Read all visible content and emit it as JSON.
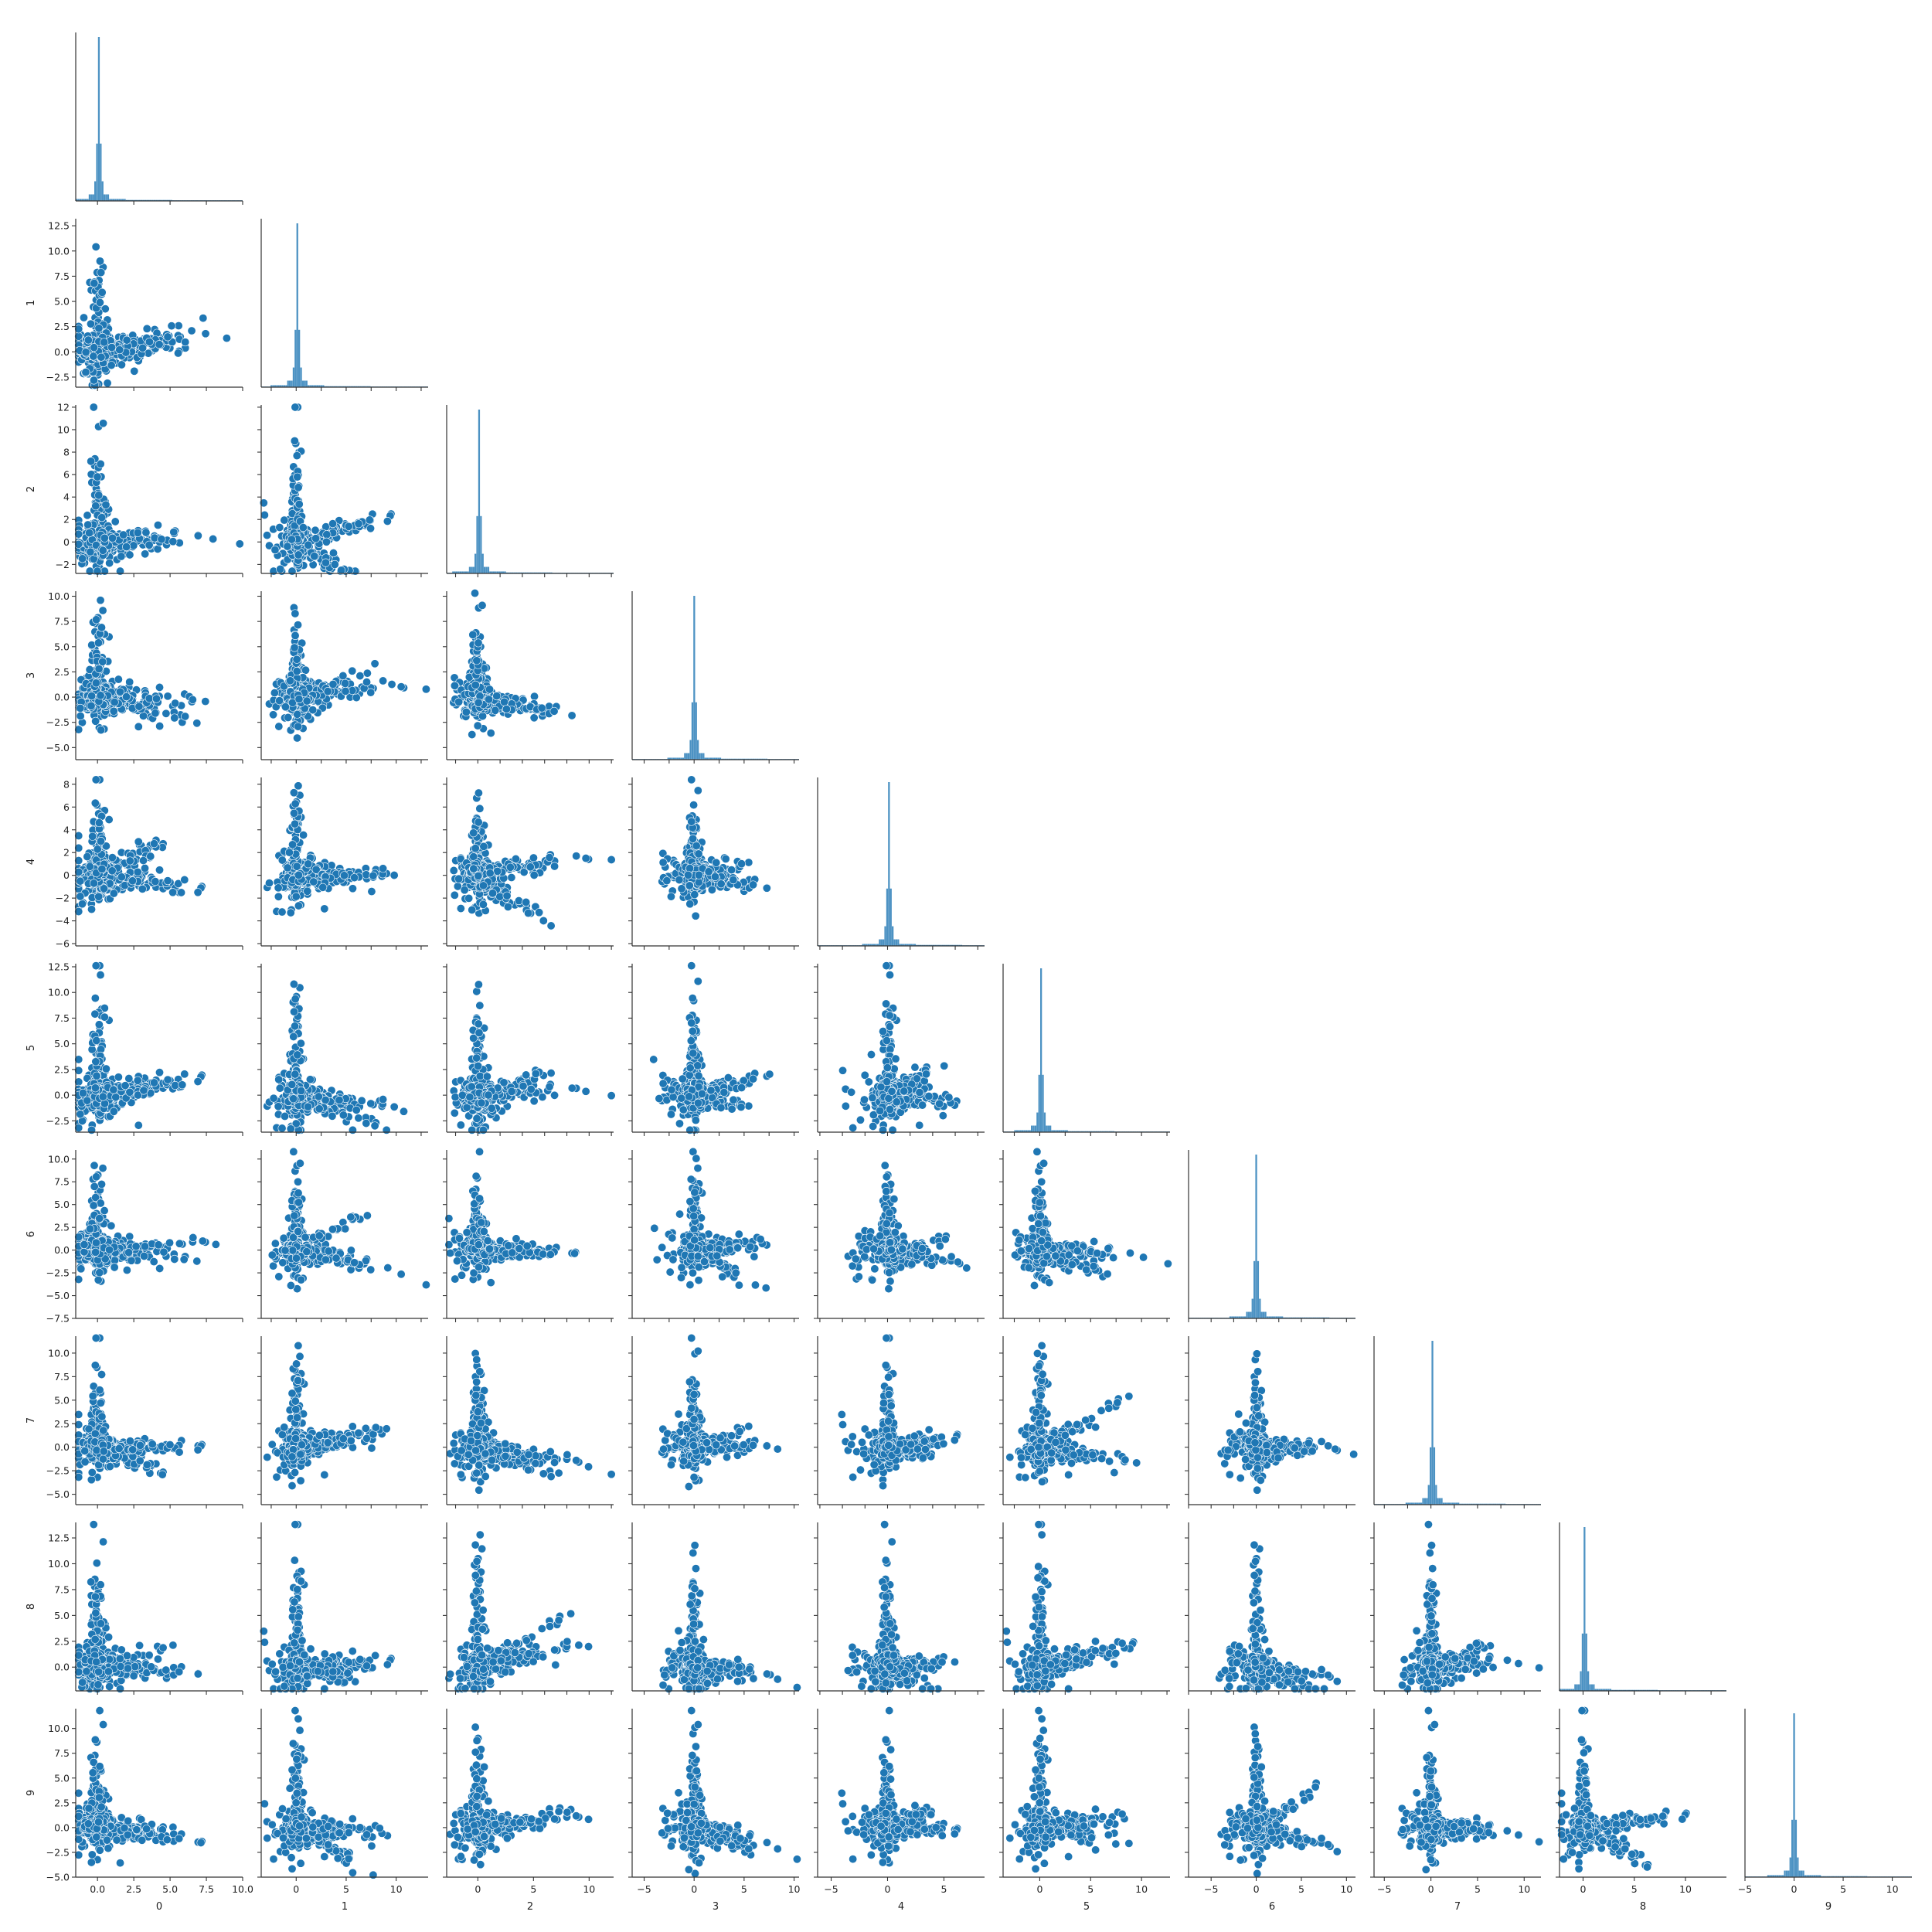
{
  "chart_data": {
    "type": "scatter",
    "kind": "pairplot-corner",
    "variables": [
      "0",
      "1",
      "2",
      "3",
      "4",
      "5",
      "6",
      "7",
      "8",
      "9"
    ],
    "diagonal": "histogram",
    "colors": {
      "marker": "#1f77b4",
      "hist": "#1f77b4",
      "axis": "#333333"
    },
    "grid": false,
    "ranges": [
      [
        -1.5,
        10.0
      ],
      [
        -3.5,
        13.2
      ],
      [
        -2.8,
        12.2
      ],
      [
        -6.2,
        10.5
      ],
      [
        -6.2,
        8.6
      ],
      [
        -3.6,
        12.8
      ],
      [
        -7.5,
        11.0
      ],
      [
        -6.1,
        11.8
      ],
      [
        -2.3,
        14.0
      ],
      [
        -5.0,
        12.0
      ]
    ],
    "ticks": [
      [
        0,
        2.5,
        5,
        7.5,
        10
      ],
      [
        -2.5,
        0,
        2.5,
        5,
        7.5,
        10,
        12.5
      ],
      [
        -2,
        0,
        2,
        4,
        6,
        8,
        10,
        12
      ],
      [
        -5,
        -2.5,
        0,
        2.5,
        5,
        7.5,
        10
      ],
      [
        -6,
        -4,
        -2,
        0,
        2,
        4,
        6,
        8
      ],
      [
        -2.5,
        0,
        2.5,
        5,
        7.5,
        10,
        12.5
      ],
      [
        -7.5,
        -5,
        -2.5,
        0,
        2.5,
        5,
        7.5,
        10
      ],
      [
        -5,
        -2.5,
        0,
        2.5,
        5,
        7.5,
        10
      ],
      [
        0,
        2.5,
        5,
        7.5,
        10,
        12.5
      ],
      [
        -5,
        -2.5,
        0,
        2.5,
        5,
        7.5,
        10
      ]
    ],
    "tick_labels": [
      [
        "0.0",
        "2.5",
        "5.0",
        "7.5",
        "10.0"
      ],
      [
        "−2.5",
        "0.0",
        "2.5",
        "5.0",
        "7.5",
        "10.0",
        "12.5"
      ],
      [
        "−2",
        "0",
        "2",
        "4",
        "6",
        "8",
        "10",
        "12"
      ],
      [
        "−5.0",
        "−2.5",
        "0.0",
        "2.5",
        "5.0",
        "7.5",
        "10.0"
      ],
      [
        "−6",
        "−4",
        "−2",
        "0",
        "2",
        "4",
        "6",
        "8"
      ],
      [
        "−2.5",
        "0.0",
        "2.5",
        "5.0",
        "7.5",
        "10.0",
        "12.5"
      ],
      [
        "−7.5",
        "−5.0",
        "−2.5",
        "0.0",
        "2.5",
        "5.0",
        "7.5",
        "10.0"
      ],
      [
        "−5.0",
        "−2.5",
        "0.0",
        "2.5",
        "5.0",
        "7.5",
        "10.0"
      ],
      [
        "0.0",
        "2.5",
        "5.0",
        "7.5",
        "10.0",
        "12.5"
      ],
      [
        "−5.0",
        "−2.5",
        "0.0",
        "2.5",
        "5.0",
        "7.5",
        "10.0"
      ]
    ],
    "bottom_tick_labels": [
      [
        "0.0",
        "2.5",
        "5.0",
        "7.5",
        "10.0"
      ],
      [
        "0",
        "5",
        "10"
      ],
      [
        "0",
        "5",
        "10"
      ],
      [
        "−5",
        "0",
        "5",
        "10"
      ],
      [
        "−5",
        "0",
        "5"
      ],
      [
        "0",
        "5",
        "10"
      ],
      [
        "−5",
        "0",
        "5",
        "10"
      ],
      [
        "−5",
        "0",
        "5",
        "10"
      ],
      [
        "0",
        "5",
        "10"
      ],
      [
        "−5",
        "0",
        "5",
        "10"
      ]
    ],
    "bottom_ticks": [
      [
        0,
        2.5,
        5,
        7.5,
        10
      ],
      [
        0,
        5,
        10
      ],
      [
        0,
        5,
        10
      ],
      [
        -5,
        0,
        5,
        10
      ],
      [
        -5,
        0,
        5
      ],
      [
        0,
        5,
        10
      ],
      [
        -5,
        0,
        5,
        10
      ],
      [
        -5,
        0,
        5,
        10
      ],
      [
        0,
        5,
        10
      ],
      [
        -5,
        0,
        5,
        10
      ]
    ],
    "point_count_per_panel": 520
  }
}
